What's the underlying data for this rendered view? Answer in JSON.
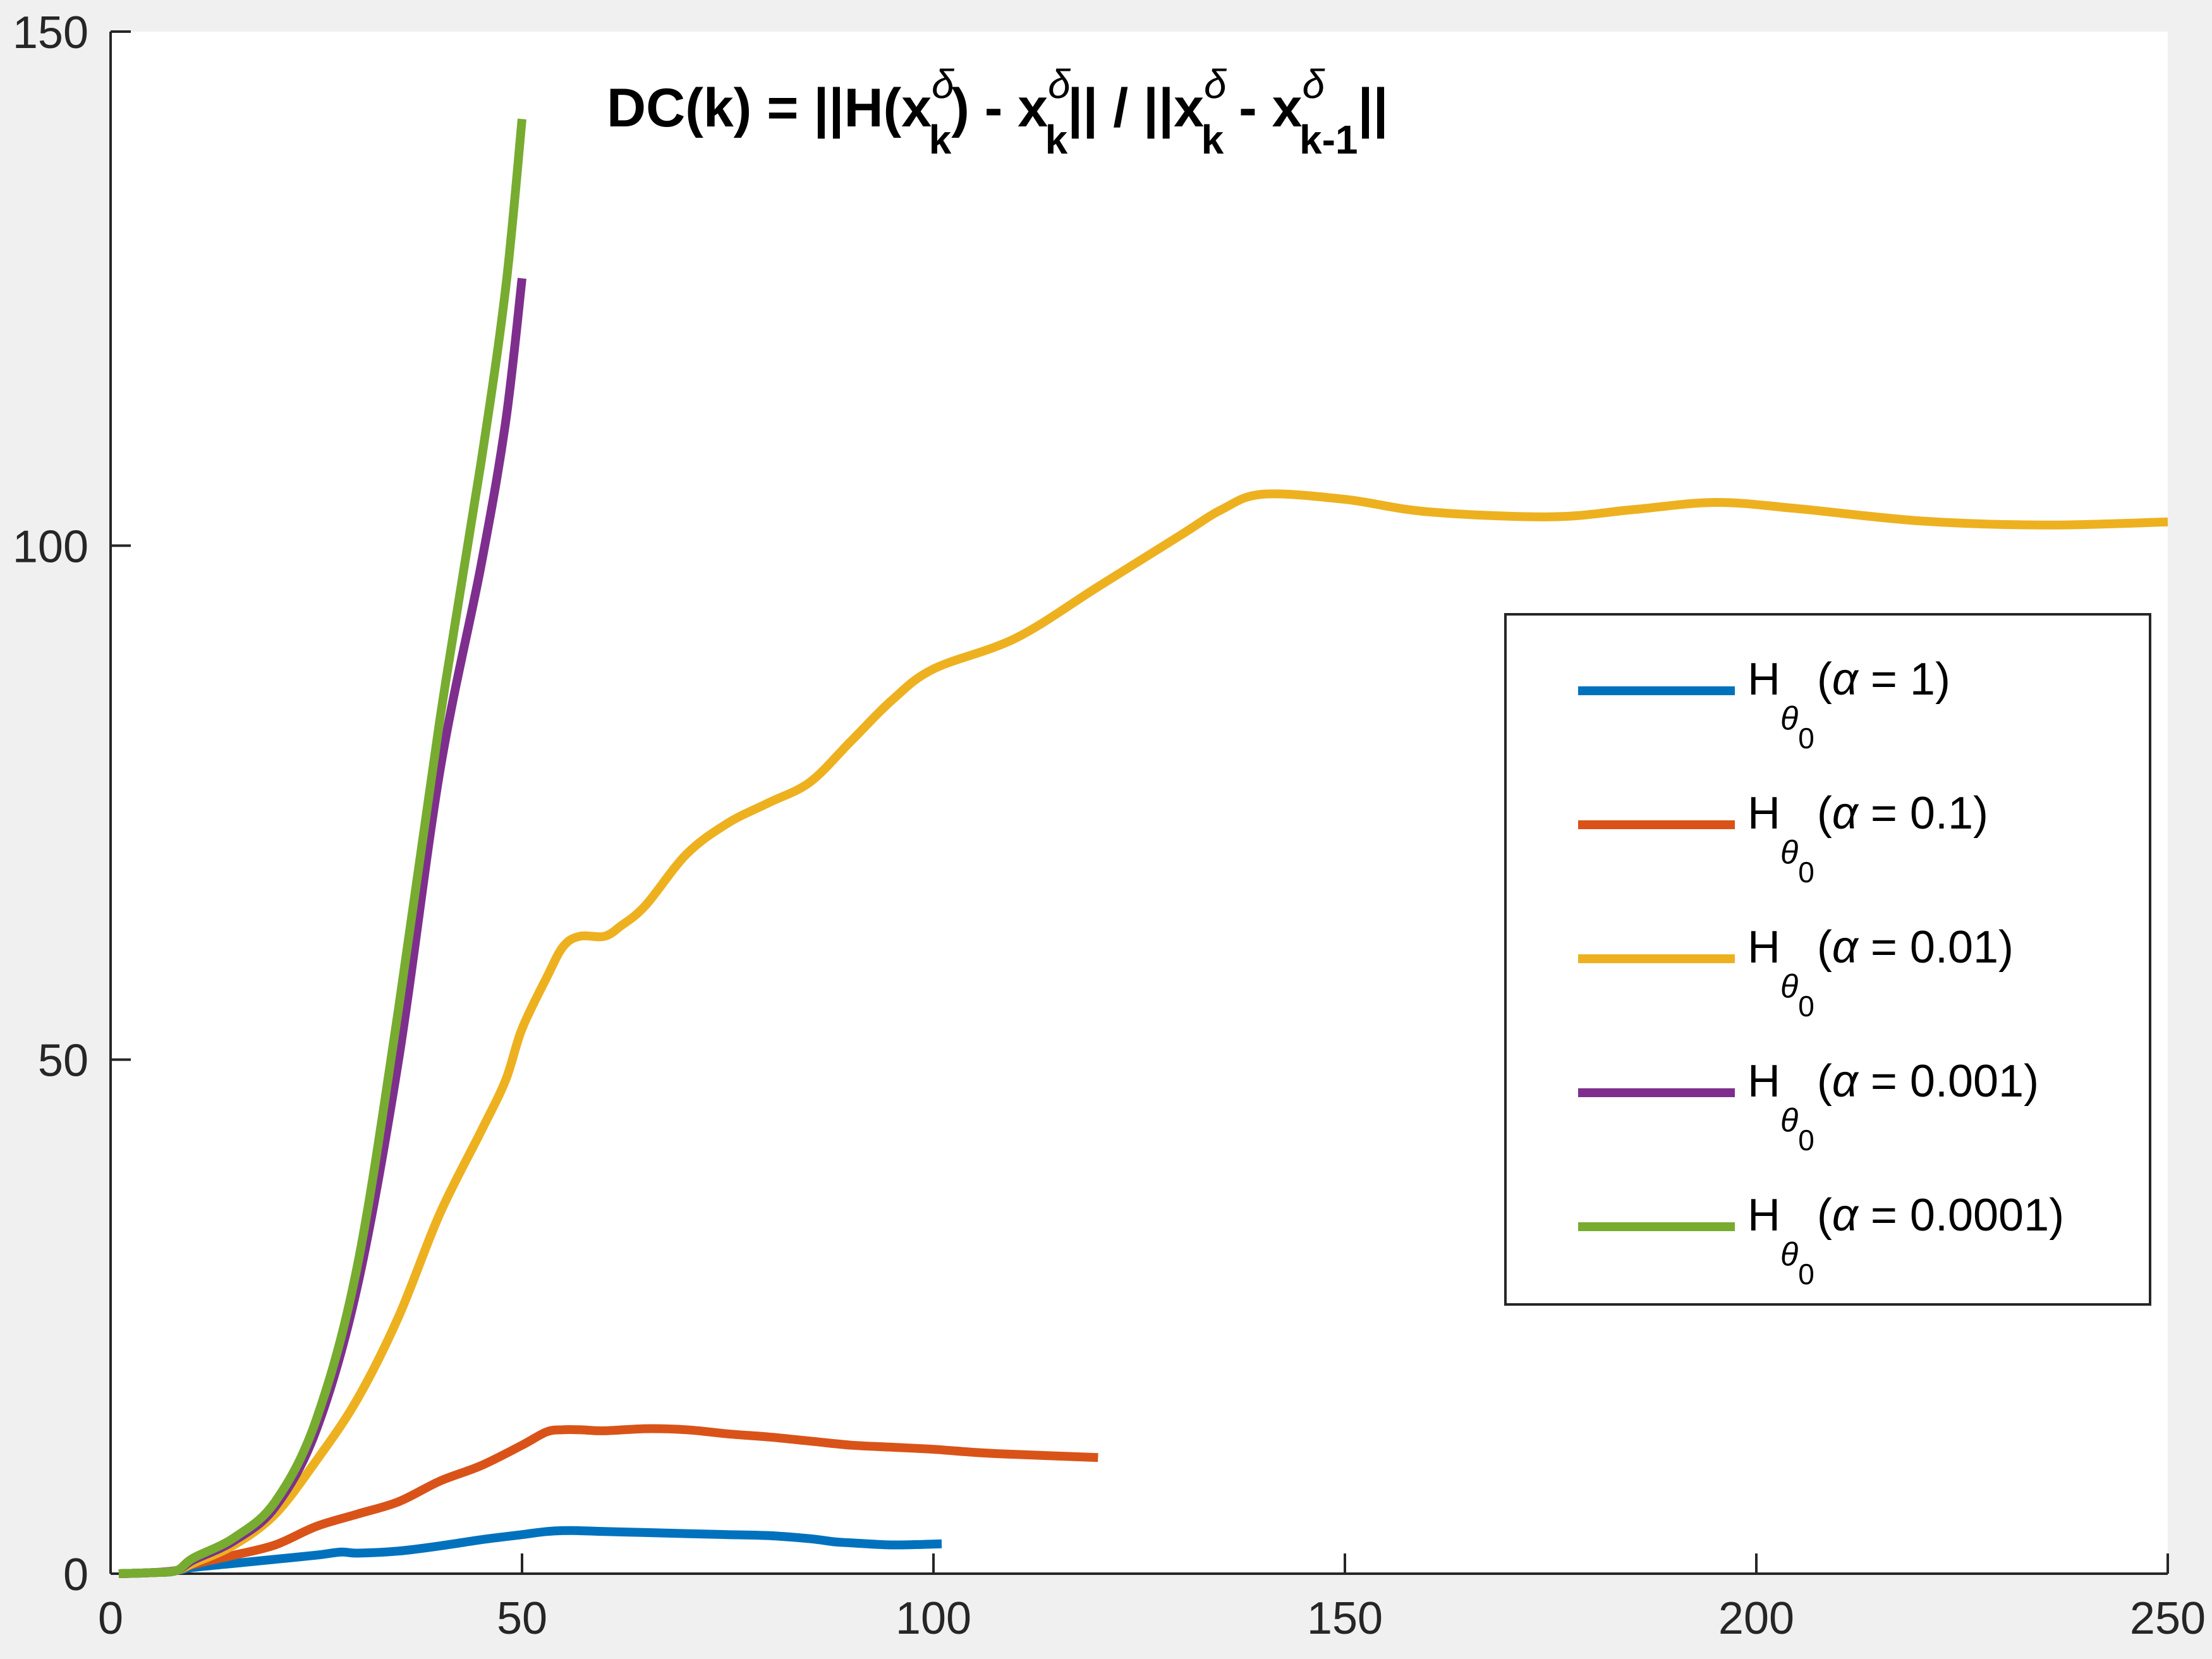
{
  "chart_data": {
    "type": "line",
    "title": "DC(k) = ||H(x_k^δ) - x_k^δ|| / ||x_k^δ - x_{k-1}^δ||",
    "title_parts": {
      "lead": "DC(k) = ||H(x",
      "delta": "δ",
      "k": "k",
      "close_paren_minus_x": ") - x",
      "norm_div_x": "|| / ||x",
      "minus_x": " - x",
      "k_minus_1": "k-1",
      "end": "||"
    },
    "xlabel": "",
    "ylabel": "",
    "xlim": [
      0,
      250
    ],
    "ylim": [
      0,
      150
    ],
    "x_ticks": [
      "0",
      "50",
      "100",
      "150",
      "200",
      "250"
    ],
    "y_ticks": [
      "0",
      "50",
      "100",
      "150"
    ],
    "grid": false,
    "legend_position": "right",
    "legend_entries": [
      {
        "H": "H",
        "theta": "θ",
        "zero": "0",
        "alpha": "α",
        "text": " = 1)"
      },
      {
        "H": "H",
        "theta": "θ",
        "zero": "0",
        "alpha": "α",
        "text": " = 0.1)"
      },
      {
        "H": "H",
        "theta": "θ",
        "zero": "0",
        "alpha": "α",
        "text": " = 0.01)"
      },
      {
        "H": "H",
        "theta": "θ",
        "zero": "0",
        "alpha": "α",
        "text": " = 0.001)"
      },
      {
        "H": "H",
        "theta": "θ",
        "zero": "0",
        "alpha": "α",
        "text": " = 0.0001)"
      }
    ],
    "series": [
      {
        "color": "#0072BD",
        "x": [
          1,
          5,
          8,
          10,
          15,
          20,
          25,
          28,
          30,
          35,
          40,
          45,
          50,
          53,
          56,
          60,
          65,
          70,
          75,
          80,
          85,
          88,
          90,
          95,
          101
        ],
        "y": [
          0,
          0.1,
          0.3,
          0.6,
          1.0,
          1.4,
          1.8,
          2.1,
          2.0,
          2.2,
          2.7,
          3.3,
          3.8,
          4.1,
          4.2,
          4.1,
          4.0,
          3.9,
          3.8,
          3.7,
          3.4,
          3.1,
          3.0,
          2.8,
          2.9
        ]
      },
      {
        "color": "#D95319",
        "x": [
          1,
          5,
          8,
          10,
          15,
          20,
          25,
          30,
          35,
          40,
          45,
          50,
          53,
          55,
          57,
          60,
          65,
          70,
          75,
          80,
          85,
          90,
          95,
          100,
          105,
          110,
          120
        ],
        "y": [
          0,
          0.1,
          0.3,
          0.9,
          1.8,
          2.8,
          4.6,
          5.8,
          7.0,
          9.0,
          10.5,
          12.5,
          13.8,
          14.0,
          14.0,
          13.9,
          14.1,
          14.0,
          13.6,
          13.3,
          12.9,
          12.5,
          12.3,
          12.1,
          11.8,
          11.6,
          11.3
        ]
      },
      {
        "color": "#EDB120",
        "x": [
          1,
          5,
          8,
          10,
          15,
          20,
          25,
          30,
          35,
          40,
          45,
          48,
          50,
          53,
          55,
          57,
          60,
          62,
          65,
          70,
          75,
          80,
          85,
          90,
          95,
          100,
          110,
          120,
          130,
          135,
          140,
          150,
          160,
          175,
          185,
          195,
          205,
          220,
          235,
          250
        ],
        "y": [
          0,
          0.1,
          0.3,
          1.0,
          2.8,
          5.8,
          11.0,
          17.0,
          25.0,
          35.0,
          43.0,
          48.0,
          53.0,
          58.0,
          61.0,
          62.0,
          62.0,
          63.0,
          65.0,
          70.0,
          73.0,
          75.0,
          77.0,
          81.0,
          85.0,
          88.0,
          91.0,
          96.0,
          101.0,
          103.5,
          105.0,
          104.5,
          103.3,
          102.8,
          103.5,
          104.2,
          103.6,
          102.4,
          102.0,
          102.3
        ]
      },
      {
        "color": "#7E2F8E",
        "x": [
          1,
          5,
          8,
          10,
          15,
          20,
          25,
          30,
          35,
          40,
          45,
          48,
          50
        ],
        "y": [
          0,
          0.1,
          0.3,
          1.3,
          3.2,
          6.5,
          14.0,
          28.0,
          50.0,
          78.0,
          98.0,
          112.0,
          126.0
        ]
      },
      {
        "color": "#77AC30",
        "x": [
          1,
          5,
          8,
          10,
          15,
          20,
          25,
          30,
          35,
          40,
          45,
          48,
          50
        ],
        "y": [
          0,
          0.1,
          0.3,
          1.5,
          3.5,
          7.0,
          15.0,
          30.0,
          55.0,
          83.0,
          108.0,
          125.0,
          141.5
        ]
      }
    ]
  }
}
